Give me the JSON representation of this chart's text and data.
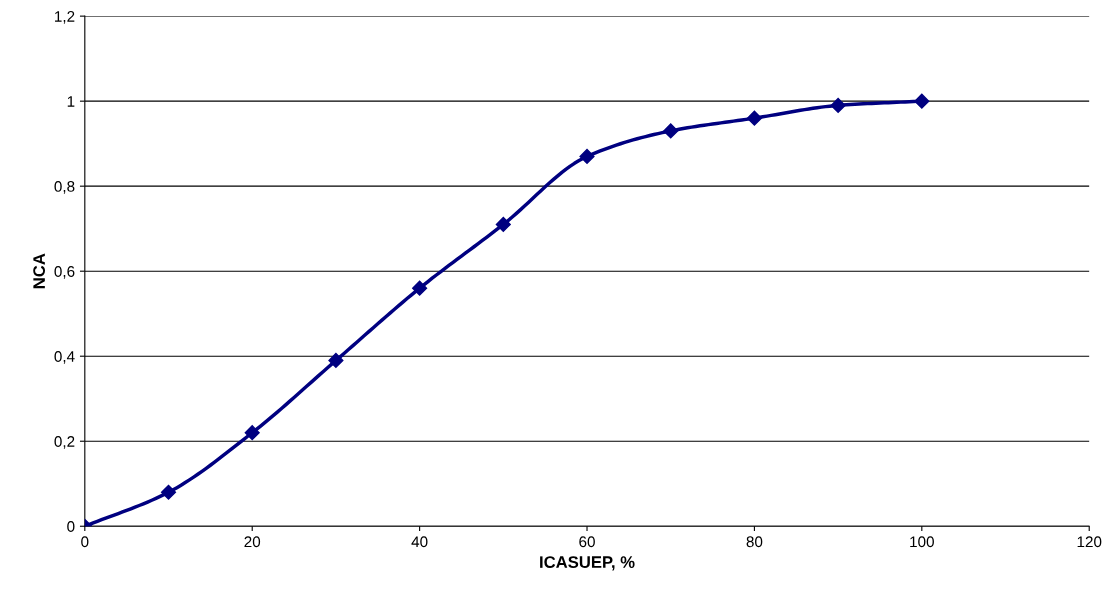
{
  "chart_data": {
    "type": "line",
    "xlabel": "ICASUEP, %",
    "ylabel": "NCA",
    "x": [
      0,
      10,
      20,
      30,
      40,
      50,
      60,
      70,
      80,
      90,
      100
    ],
    "series": [
      {
        "color": "#000080",
        "values": [
          0,
          0.08,
          0.22,
          0.39,
          0.56,
          0.71,
          0.87,
          0.93,
          0.96,
          0.99,
          1.0
        ]
      }
    ],
    "xlim": [
      0,
      120
    ],
    "xticks": [
      0,
      20,
      40,
      60,
      80,
      100,
      120
    ],
    "ylim": [
      0,
      1.2
    ],
    "yticks": [
      0,
      {
        "value": 0.2,
        "label": "0,2"
      },
      {
        "value": 0.4,
        "label": "0,4"
      },
      {
        "value": 0.6,
        "label": "0,6"
      },
      {
        "value": 0.8,
        "label": "0,8"
      },
      1,
      {
        "value": 1.2,
        "label": "1,2"
      }
    ],
    "grid": "y",
    "marker": "diamond",
    "line_style": "solid"
  }
}
